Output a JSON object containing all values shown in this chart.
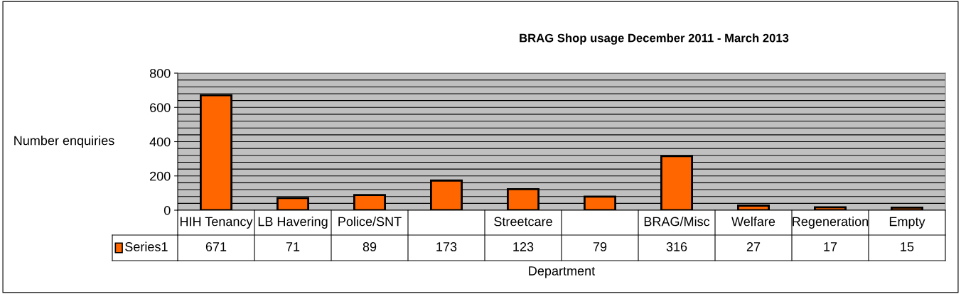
{
  "chart_data": {
    "type": "bar",
    "title": "BRAG Shop usage December 2011 - March 2013",
    "xlabel": "Department",
    "ylabel": "Number enquiries",
    "categories": [
      "HIH Tenancy",
      "LB Havering",
      "Police/SNT",
      null,
      "Streetcare",
      null,
      "BRAG/Misc",
      "Welfare",
      "Regeneration",
      "Empty"
    ],
    "series": [
      {
        "name": "Series1",
        "color": "#ff6600",
        "values": [
          671,
          71,
          89,
          173,
          123,
          79,
          316,
          27,
          17,
          15
        ]
      }
    ],
    "ylim": [
      0,
      800
    ],
    "yticks": [
      0,
      {
        "value": 40,
        "label": null
      },
      {
        "value": 80,
        "label": null
      },
      {
        "value": 120,
        "label": null
      },
      {
        "value": 160,
        "label": null
      },
      200,
      {
        "value": 240,
        "label": null
      },
      {
        "value": 280,
        "label": null
      },
      {
        "value": 320,
        "label": null
      },
      {
        "value": 360,
        "label": null
      },
      400,
      {
        "value": 440,
        "label": null
      },
      {
        "value": 480,
        "label": null
      },
      {
        "value": 520,
        "label": null
      },
      {
        "value": 560,
        "label": null
      },
      600,
      {
        "value": 640,
        "label": null
      },
      {
        "value": 680,
        "label": null
      },
      {
        "value": 720,
        "label": null
      },
      {
        "value": 760,
        "label": null
      },
      800
    ],
    "grid": "y",
    "data_labels": true,
    "legend": "bottom left"
  }
}
